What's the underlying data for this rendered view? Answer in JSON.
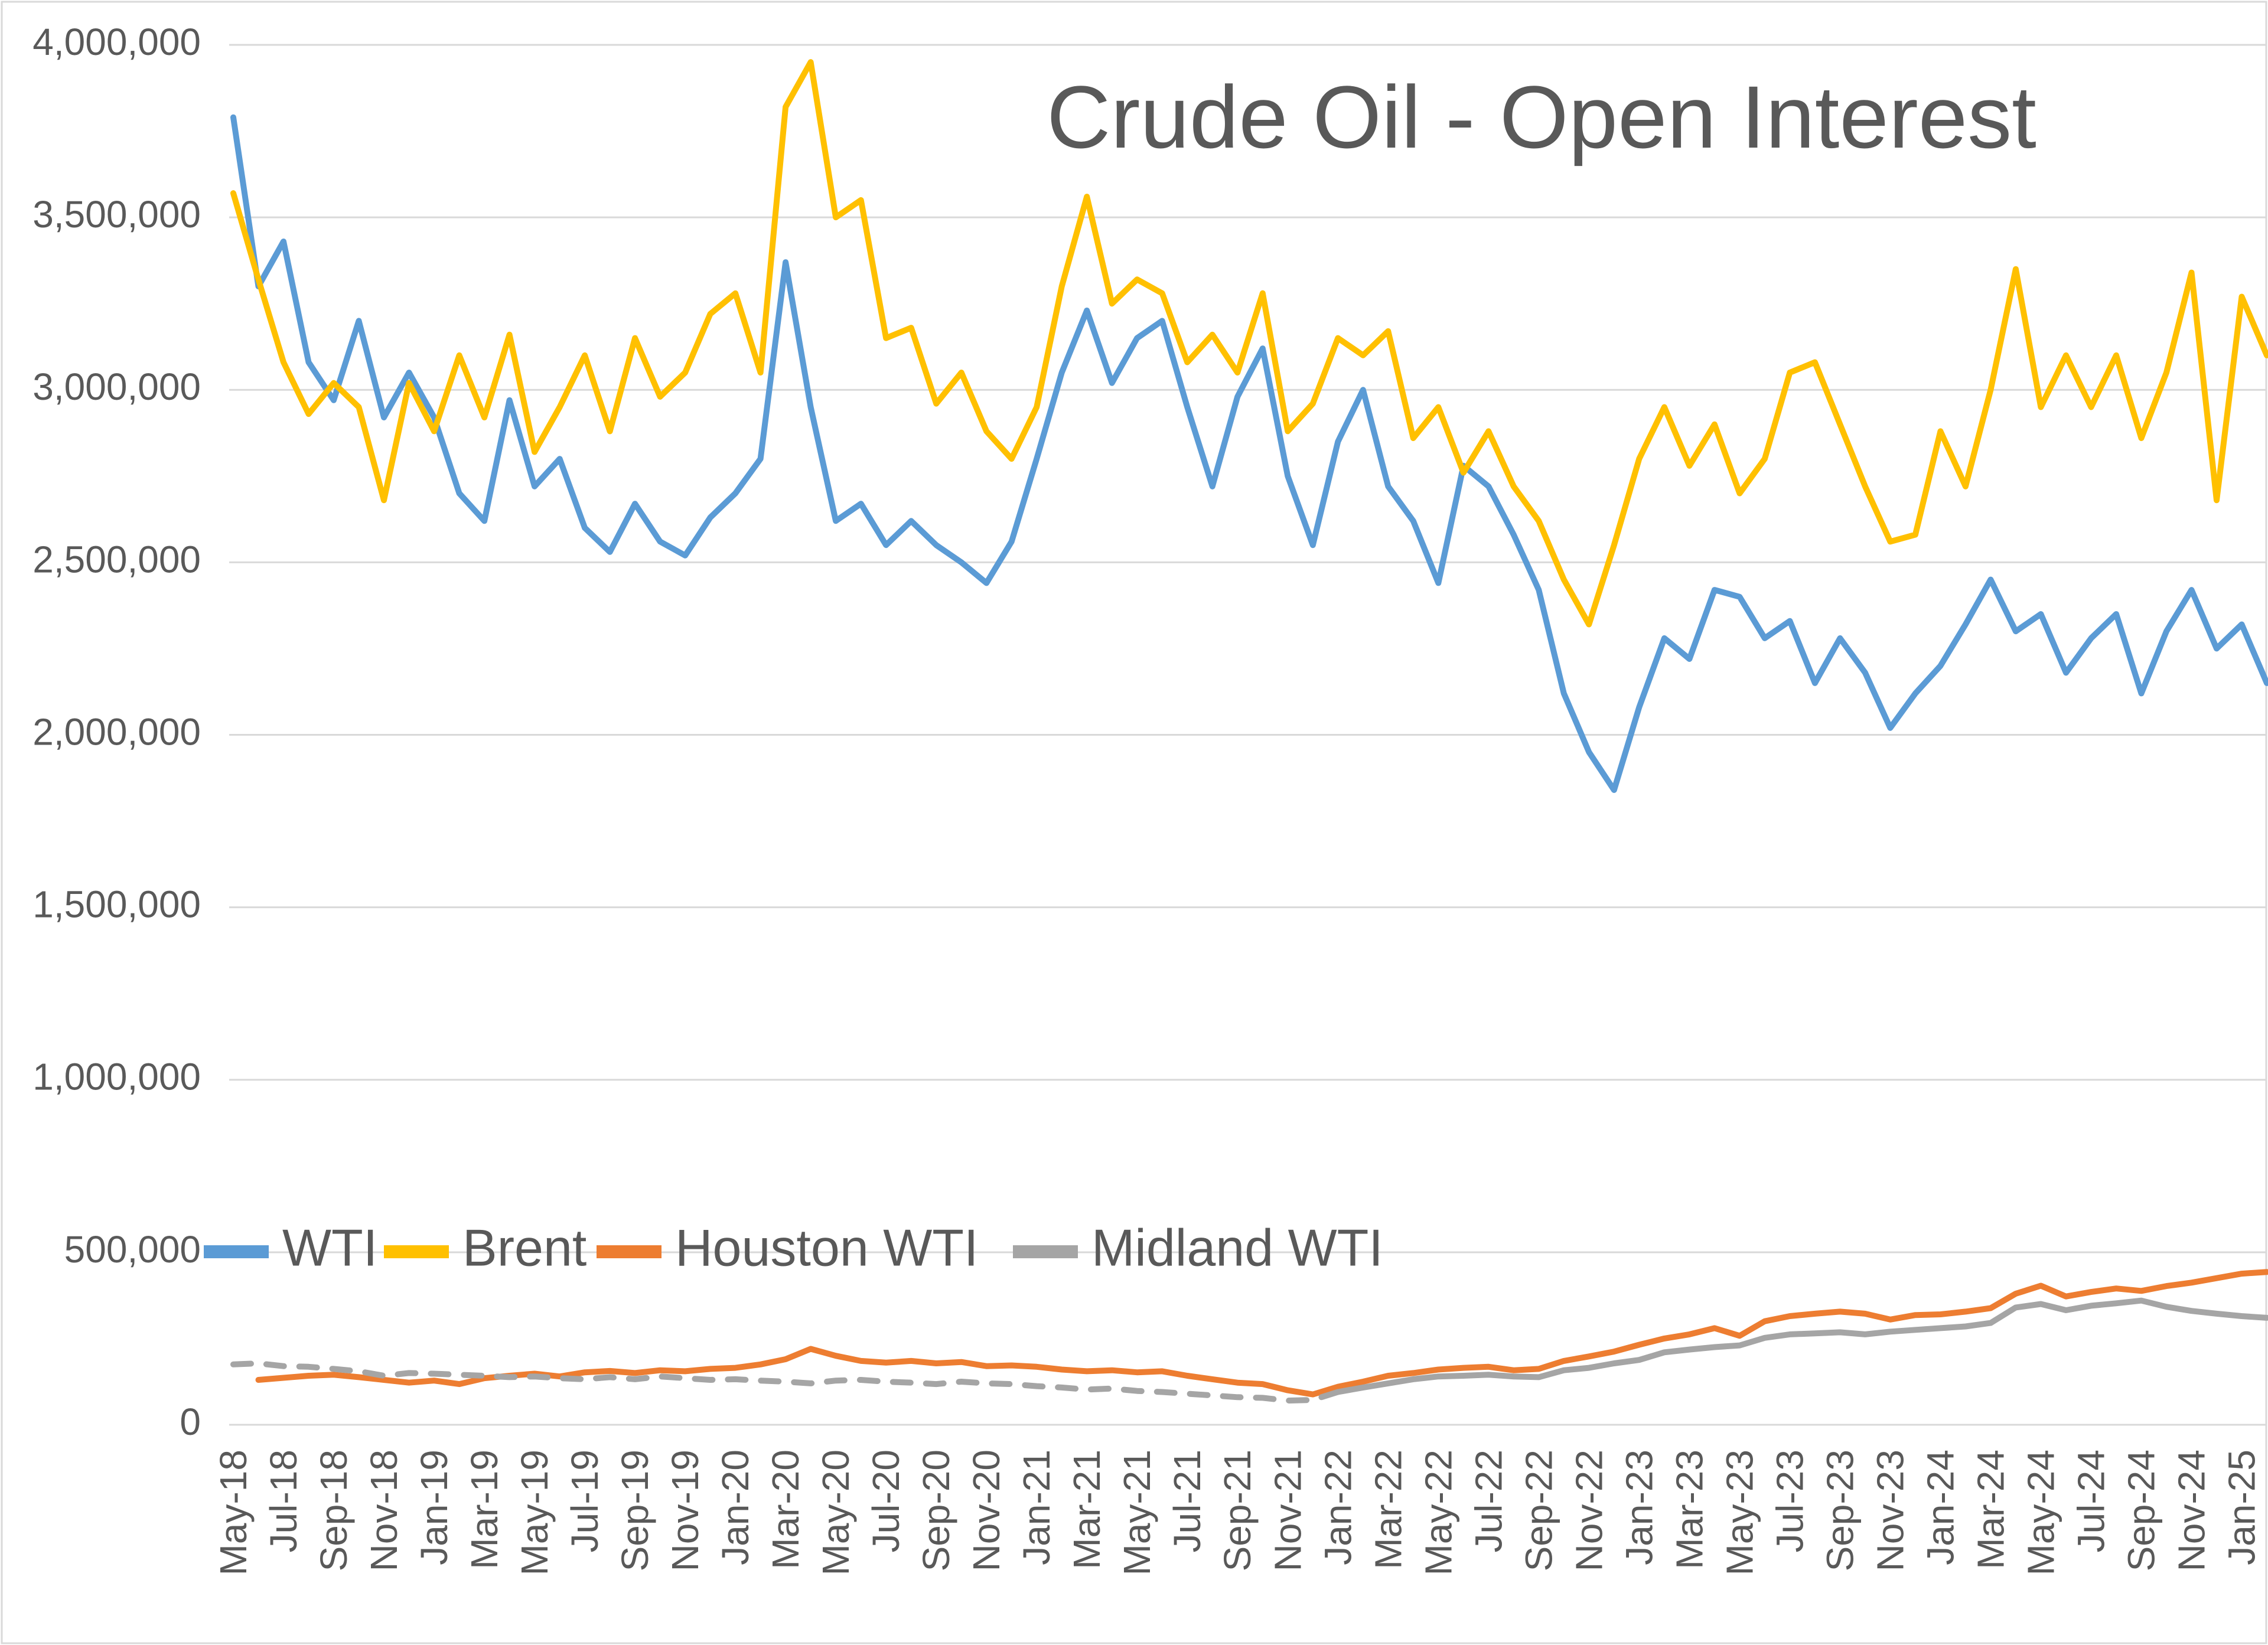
{
  "chart_data": {
    "type": "line",
    "title": "Crude Oil - Open Interest",
    "xlabel": "",
    "ylabel": "",
    "ylim": [
      0,
      4000000
    ],
    "grid": "horizontal",
    "legend_position": "inside-bottom-left",
    "interval": "monthly, 2 data points per x tick label",
    "x_tick_labels": [
      "May-18",
      "Jul-18",
      "Sep-18",
      "Nov-18",
      "Jan-19",
      "Mar-19",
      "May-19",
      "Jul-19",
      "Sep-19",
      "Nov-19",
      "Jan-20",
      "Mar-20",
      "May-20",
      "Jul-20",
      "Sep-20",
      "Nov-20",
      "Jan-21",
      "Mar-21",
      "May-21",
      "Jul-21",
      "Sep-21",
      "Nov-21",
      "Jan-22",
      "Mar-22",
      "May-22",
      "Jul-22",
      "Sep-22",
      "Nov-22",
      "Jan-23",
      "Mar-23",
      "May-23",
      "Jul-23",
      "Sep-23",
      "Nov-23",
      "Jan-24",
      "Mar-24",
      "May-24",
      "Jul-24",
      "Sep-24",
      "Nov-24",
      "Jan-25"
    ],
    "y_tick_labels": [
      "0",
      "500,000",
      "1,000,000",
      "1,500,000",
      "2,000,000",
      "2,500,000",
      "3,000,000",
      "3,500,000",
      "4,000,000"
    ],
    "y_tick_values": [
      0,
      500000,
      1000000,
      1500000,
      2000000,
      2500000,
      3000000,
      3500000,
      4000000
    ],
    "colors": {
      "axis_text": "#595959",
      "title": "#595959",
      "gridline": "#d9d9d9",
      "background": "#ffffff",
      "border": "#d9d9d9"
    },
    "series": [
      {
        "name": "WTI",
        "color": "#5b9bd5",
        "values": [
          3790000,
          3300000,
          3430000,
          3080000,
          2970000,
          3200000,
          2920000,
          3050000,
          2920000,
          2700000,
          2620000,
          2970000,
          2720000,
          2800000,
          2600000,
          2530000,
          2670000,
          2560000,
          2520000,
          2630000,
          2700000,
          2800000,
          3370000,
          2950000,
          2620000,
          2670000,
          2550000,
          2620000,
          2550000,
          2500000,
          2440000,
          2560000,
          2800000,
          3050000,
          3230000,
          3020000,
          3150000,
          3200000,
          2950000,
          2720000,
          2980000,
          3120000,
          2750000,
          2550000,
          2850000,
          3000000,
          2720000,
          2620000,
          2440000,
          2780000,
          2720000,
          2580000,
          2420000,
          2120000,
          1950000,
          1840000,
          2080000,
          2280000,
          2220000,
          2420000,
          2400000,
          2280000,
          2330000,
          2150000,
          2280000,
          2180000,
          2020000,
          2120000,
          2200000,
          2320000,
          2450000,
          2300000,
          2350000,
          2180000,
          2280000,
          2350000,
          2120000,
          2300000,
          2420000,
          2250000,
          2320000,
          2150000
        ]
      },
      {
        "name": "Brent",
        "color": "#ffc000",
        "values": [
          3570000,
          3320000,
          3080000,
          2930000,
          3020000,
          2950000,
          2680000,
          3020000,
          2880000,
          3100000,
          2920000,
          3160000,
          2820000,
          2950000,
          3100000,
          2880000,
          3150000,
          2980000,
          3050000,
          3220000,
          3280000,
          3050000,
          3820000,
          3950000,
          3500000,
          3550000,
          3150000,
          3180000,
          2960000,
          3050000,
          2880000,
          2800000,
          2950000,
          3300000,
          3560000,
          3250000,
          3320000,
          3280000,
          3080000,
          3160000,
          3050000,
          3280000,
          2880000,
          2960000,
          3150000,
          3100000,
          3170000,
          2860000,
          2950000,
          2760000,
          2880000,
          2720000,
          2620000,
          2450000,
          2320000,
          2550000,
          2800000,
          2950000,
          2780000,
          2900000,
          2700000,
          2800000,
          3050000,
          3080000,
          2900000,
          2720000,
          2560000,
          2580000,
          2880000,
          2720000,
          3000000,
          3350000,
          2950000,
          3100000,
          2950000,
          3100000,
          2860000,
          3050000,
          3340000,
          2680000,
          3270000,
          3100000
        ]
      },
      {
        "name": "Houston WTI",
        "color": "#ed7d31",
        "values": [
          null,
          130000,
          136000,
          142000,
          145000,
          138000,
          130000,
          122000,
          128000,
          118000,
          135000,
          142000,
          148000,
          140000,
          152000,
          156000,
          150000,
          158000,
          155000,
          162000,
          165000,
          175000,
          190000,
          220000,
          200000,
          185000,
          180000,
          185000,
          178000,
          182000,
          170000,
          172000,
          168000,
          160000,
          155000,
          158000,
          152000,
          155000,
          142000,
          132000,
          122000,
          118000,
          100000,
          88000,
          110000,
          125000,
          142000,
          150000,
          160000,
          165000,
          168000,
          158000,
          162000,
          185000,
          198000,
          212000,
          232000,
          250000,
          262000,
          280000,
          258000,
          300000,
          315000,
          322000,
          328000,
          322000,
          305000,
          318000,
          320000,
          328000,
          338000,
          380000,
          403000,
          372000,
          385000,
          395000,
          388000,
          402000,
          412000,
          425000,
          438000,
          443000
        ]
      },
      {
        "name": "Midland WTI",
        "color": "#a5a5a5",
        "dashed_until_index": 44,
        "values": [
          175000,
          178000,
          170000,
          168000,
          162000,
          155000,
          142000,
          150000,
          148000,
          145000,
          142000,
          138000,
          140000,
          135000,
          132000,
          138000,
          132000,
          140000,
          135000,
          130000,
          132000,
          128000,
          125000,
          120000,
          128000,
          130000,
          125000,
          122000,
          118000,
          125000,
          120000,
          118000,
          112000,
          108000,
          102000,
          105000,
          98000,
          95000,
          90000,
          85000,
          80000,
          78000,
          70000,
          72000,
          95000,
          108000,
          120000,
          132000,
          140000,
          142000,
          145000,
          140000,
          138000,
          158000,
          165000,
          178000,
          188000,
          210000,
          218000,
          225000,
          230000,
          252000,
          262000,
          265000,
          268000,
          262000,
          270000,
          275000,
          280000,
          285000,
          295000,
          340000,
          350000,
          332000,
          345000,
          352000,
          360000,
          342000,
          330000,
          322000,
          315000,
          310000
        ]
      }
    ]
  }
}
